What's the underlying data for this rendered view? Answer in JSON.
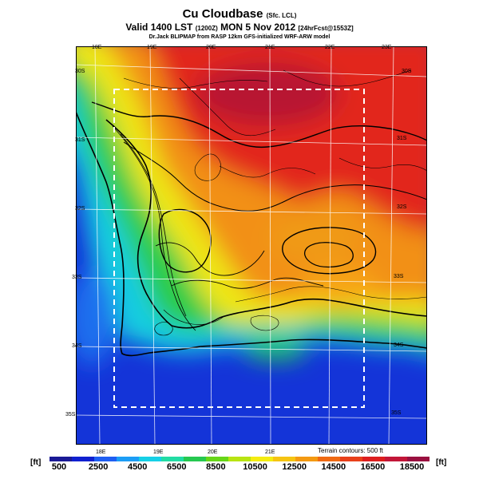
{
  "header": {
    "title_main": "Cu Cloudbase",
    "title_suffix": "(Sfc. LCL)",
    "valid_main": "Valid 1400 LST",
    "valid_code": "(1200Z)",
    "valid_date": "MON 5 Nov 2012",
    "valid_forecast": "[24hrFcst@1553Z]",
    "source": "Dr.Jack BLIPMAP from RASP 12km GFS-initialized WRF-ARW model"
  },
  "map": {
    "lon_labels_top": [
      "18E",
      "19E",
      "20E",
      "21E",
      "22E",
      "23E"
    ],
    "lon_labels_bottom": [
      "18E",
      "19E",
      "20E",
      "21E"
    ],
    "lat_labels": [
      "30S",
      "31S",
      "32S",
      "33S",
      "34S",
      "35S"
    ],
    "terrain_note": "Terrain contours: 500 ft"
  },
  "colorbar": {
    "unit_left": "[ft]",
    "unit_right": "[ft]",
    "labels": [
      "500",
      "2500",
      "4500",
      "6500",
      "8500",
      "10500",
      "12500",
      "14500",
      "16500",
      "18500"
    ],
    "colors": [
      "#1a1a96",
      "#1020d0",
      "#1f5ef2",
      "#1c9df6",
      "#16d0e6",
      "#22dca4",
      "#26c850",
      "#67d618",
      "#b8e412",
      "#f4ec10",
      "#f6c412",
      "#f49a12",
      "#f06a12",
      "#e8401a",
      "#dd1e1e",
      "#c21638",
      "#9a1040"
    ]
  }
}
